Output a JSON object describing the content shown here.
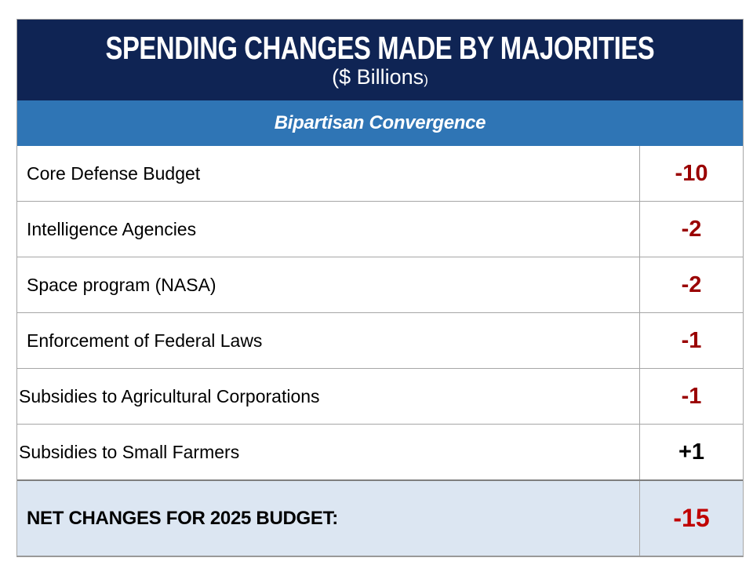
{
  "slide": {
    "title": "SPENDING CHANGES MADE BY MAJORITIES",
    "subtitle_main": "($ Billions",
    "subtitle_paren": ")",
    "section_header": "Bipartisan Convergence"
  },
  "table": {
    "rows": [
      {
        "label": "Core Defense Budget",
        "value": "-10",
        "value_color": "#9a0000"
      },
      {
        "label": "Intelligence Agencies",
        "value": "-2",
        "value_color": "#9a0000"
      },
      {
        "label": "Space program (NASA)",
        "value": "-2",
        "value_color": "#9a0000"
      },
      {
        "label": "Enforcement of Federal Laws",
        "value": "-1",
        "value_color": "#9a0000"
      },
      {
        "label": "Subsidies to Agricultural Corporations",
        "value": "-1",
        "value_color": "#9a0000"
      },
      {
        "label": "Subsidies to Small Farmers",
        "value": "+1",
        "value_color": "#000000"
      }
    ],
    "net_row": {
      "label": "NET CHANGES FOR 2025 BUDGET:",
      "value": "-15",
      "value_color": "#c00000"
    }
  },
  "colors": {
    "header_bg": "#0f2454",
    "section_bg": "#2f75b5",
    "net_row_bg": "#dce6f2",
    "negative_value": "#9a0000",
    "positive_value": "#000000",
    "net_value": "#c00000",
    "grid_line": "#a6a6a6"
  },
  "chart_data": {
    "type": "table",
    "title": "SPENDING CHANGES MADE BY MAJORITIES",
    "subtitle": "($ Billions)",
    "section": "Bipartisan Convergence",
    "categories": [
      "Core Defense Budget",
      "Intelligence Agencies",
      "Space program (NASA)",
      "Enforcement of Federal Laws",
      "Subsidies to Agricultural Corporations",
      "Subsidies to Small Farmers"
    ],
    "values": [
      -10,
      -2,
      -2,
      -1,
      -1,
      1
    ],
    "net_label": "NET CHANGES FOR 2025 BUDGET:",
    "net_value": -15,
    "units": "$ Billions"
  }
}
